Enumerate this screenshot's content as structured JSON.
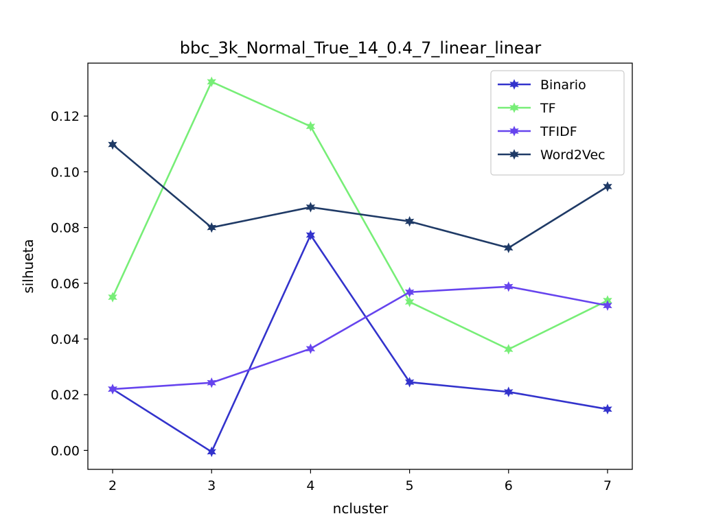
{
  "chart_data": {
    "type": "line",
    "title": "bbc_3k_Normal_True_14_0.4_7_linear_linear",
    "xlabel": "ncluster",
    "ylabel": "silhueta",
    "x": [
      2,
      3,
      4,
      5,
      6,
      7
    ],
    "xlim": [
      1.75,
      7.25
    ],
    "ylim": [
      -0.0068,
      0.139
    ],
    "xticks": [
      "2",
      "3",
      "4",
      "5",
      "6",
      "7"
    ],
    "yticks": [
      "0.00",
      "0.02",
      "0.04",
      "0.06",
      "0.08",
      "0.10",
      "0.12"
    ],
    "ytick_values": [
      0.0,
      0.02,
      0.04,
      0.06,
      0.08,
      0.1,
      0.12
    ],
    "grid": false,
    "legend_position": "top-right",
    "series": [
      {
        "name": "Binario",
        "color": "#3333cc",
        "marker": "star",
        "values": [
          0.022,
          -0.0005,
          0.0773,
          0.0245,
          0.021,
          0.0148
        ]
      },
      {
        "name": "TF",
        "color": "#77ee77",
        "marker": "star",
        "values": [
          0.055,
          0.1323,
          0.1163,
          0.0533,
          0.0363,
          0.0538
        ]
      },
      {
        "name": "TFIDF",
        "color": "#6644ee",
        "marker": "star",
        "values": [
          0.022,
          0.0243,
          0.0365,
          0.0568,
          0.0588,
          0.052
        ]
      },
      {
        "name": "Word2Vec",
        "color": "#1f3a66",
        "marker": "star",
        "values": [
          0.1098,
          0.08,
          0.0873,
          0.0822,
          0.0727,
          0.0947
        ]
      }
    ]
  }
}
